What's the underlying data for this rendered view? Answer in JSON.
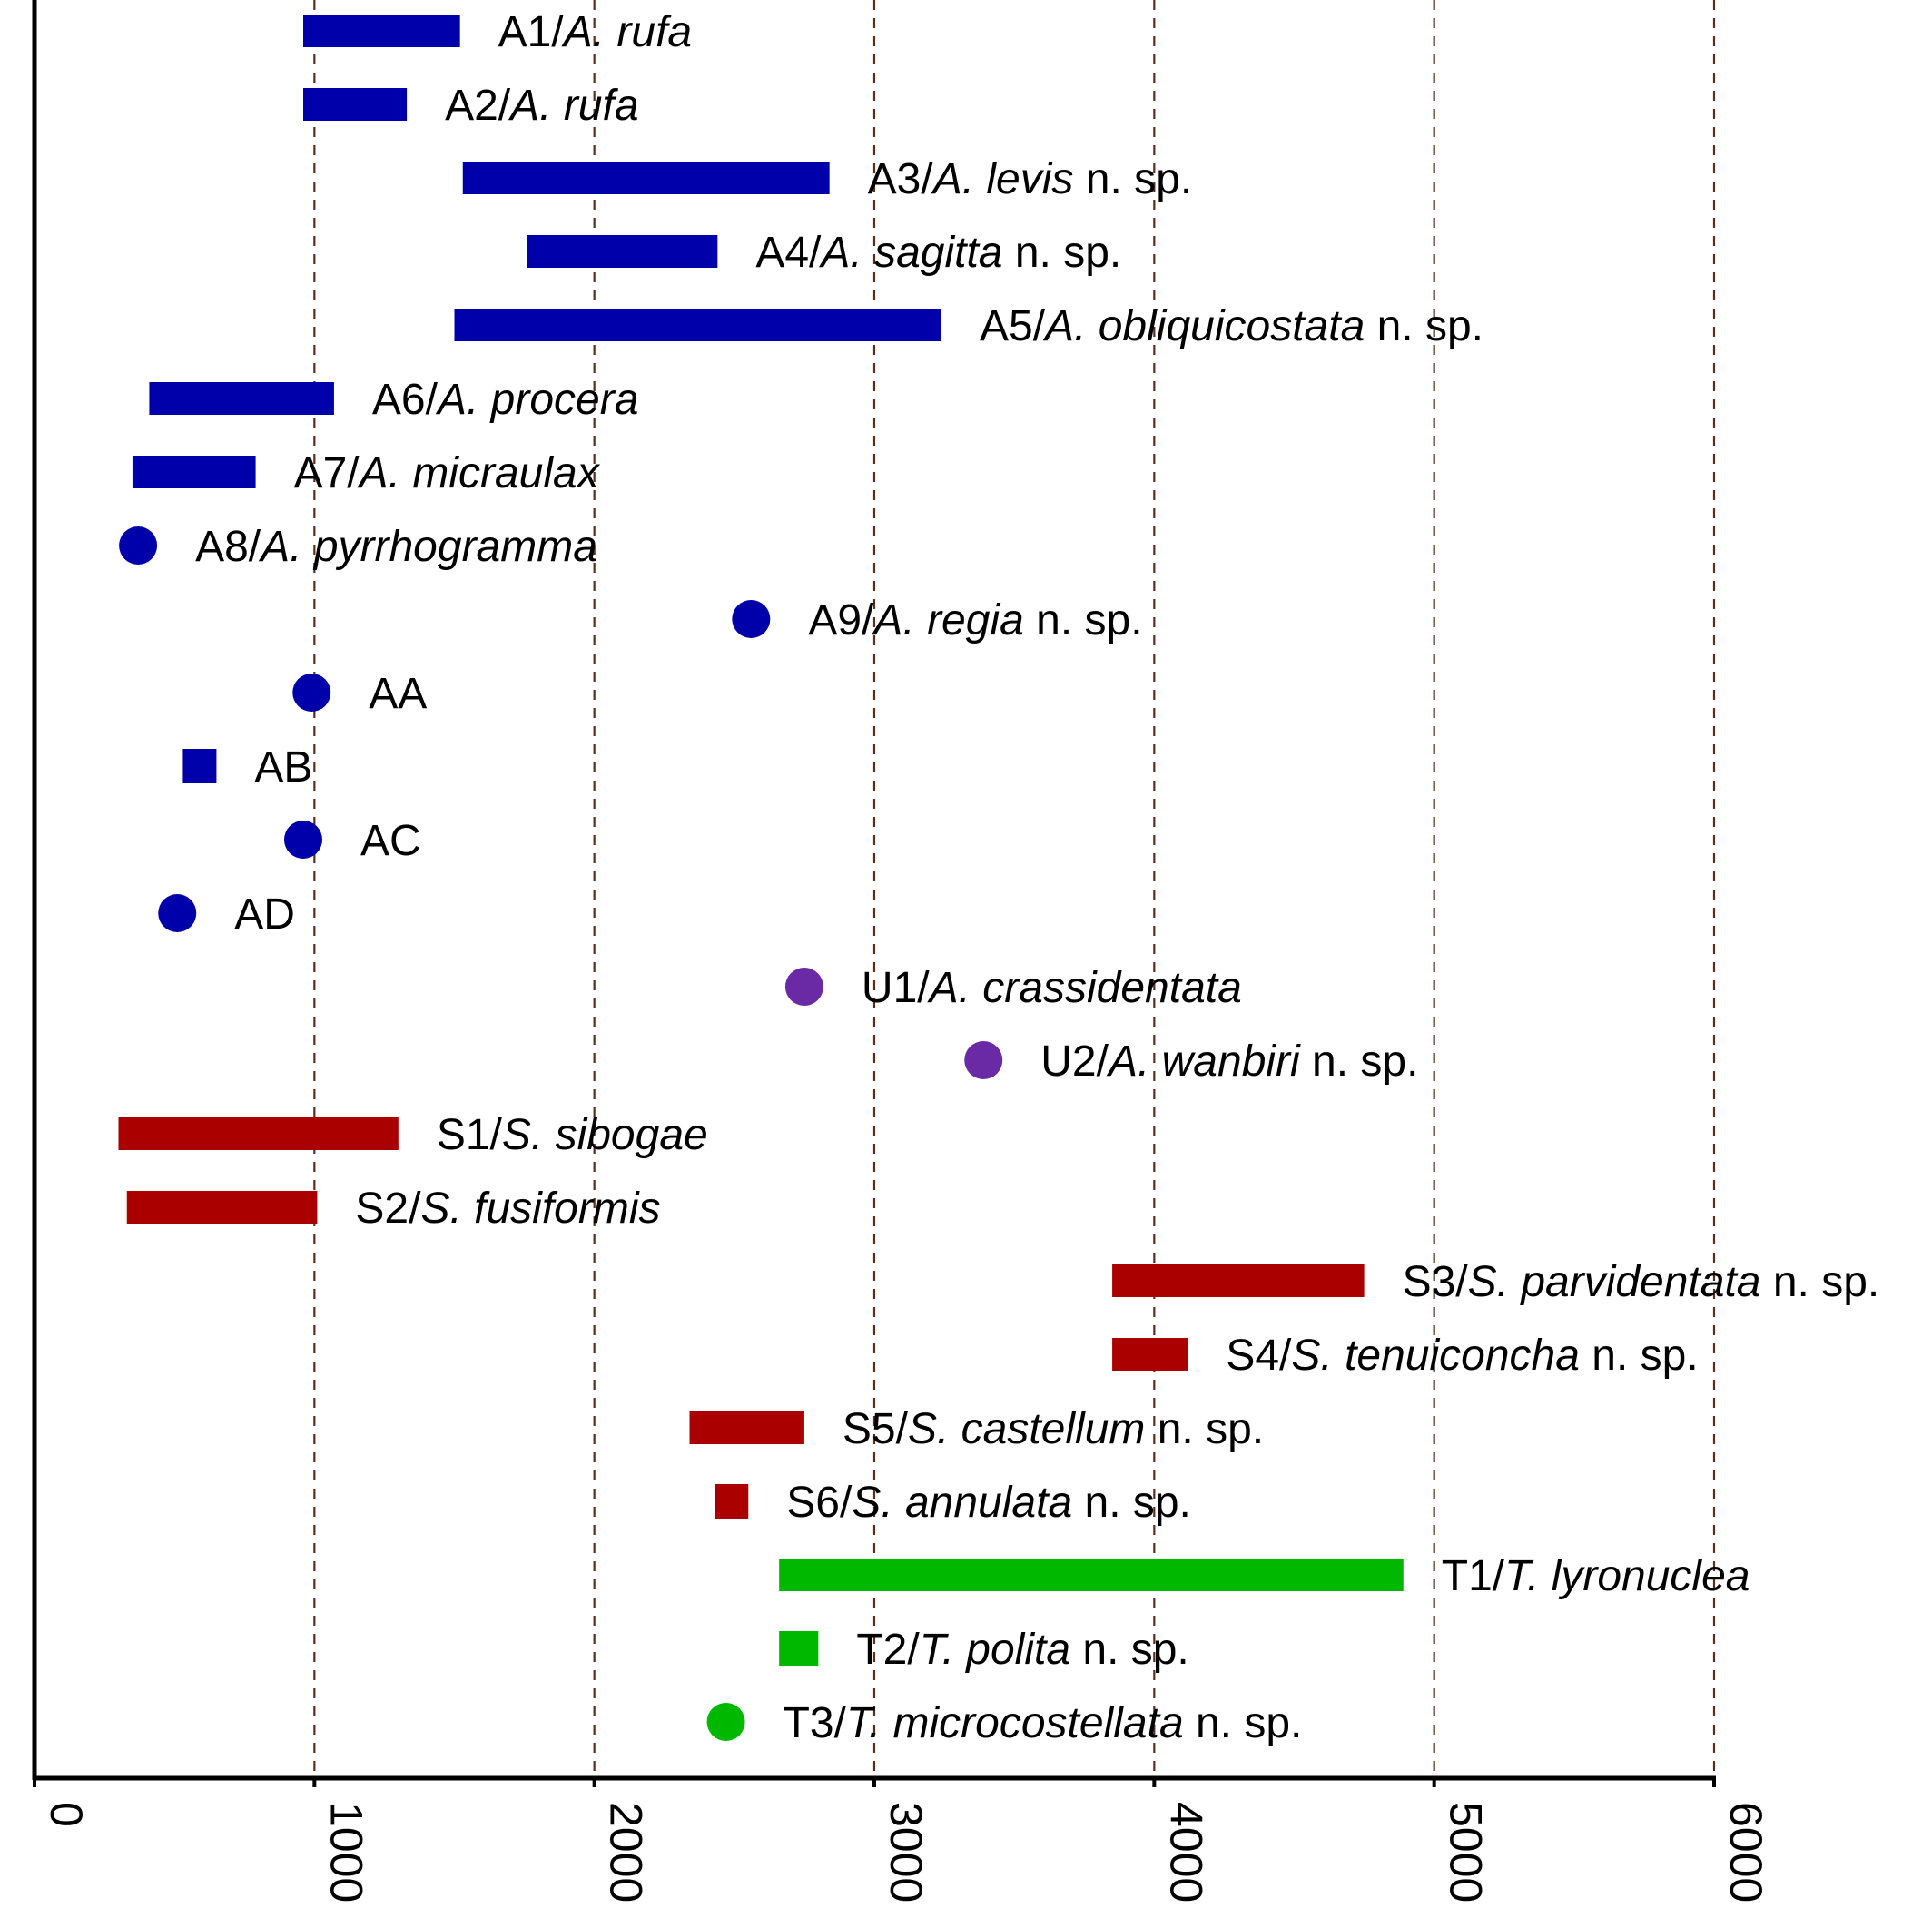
{
  "chart_data": {
    "type": "range",
    "title": "",
    "xlabel": "",
    "ylabel": "",
    "xlim": [
      0,
      6000
    ],
    "x_ticks": [
      "0",
      "1000",
      "2000",
      "3000",
      "4000",
      "5000",
      "6000"
    ],
    "grid": "vertical dashed lines at 1000-unit intervals",
    "groups": {
      "A": {
        "color": "#0000aa"
      },
      "U": {
        "color": "#6a2aa6"
      },
      "S": {
        "color": "#aa0000"
      },
      "T": {
        "color": "#00b800"
      }
    },
    "items": [
      {
        "code": "A1/",
        "taxon": "A. rufa",
        "suffix": "",
        "group": "A",
        "shape": "range",
        "min": 960,
        "max": 1520
      },
      {
        "code": "A2/",
        "taxon": "A. rufa",
        "suffix": "",
        "group": "A",
        "shape": "range",
        "min": 960,
        "max": 1330
      },
      {
        "code": "A3/",
        "taxon": "A. levis",
        "suffix": " n. sp.",
        "group": "A",
        "shape": "range",
        "min": 1530,
        "max": 2840
      },
      {
        "code": "A4/",
        "taxon": "A. sagitta",
        "suffix": " n. sp.",
        "group": "A",
        "shape": "range",
        "min": 1760,
        "max": 2440
      },
      {
        "code": "A5/",
        "taxon": "A. obliquicostata",
        "suffix": " n. sp.",
        "group": "A",
        "shape": "range",
        "min": 1500,
        "max": 3240
      },
      {
        "code": "A6/",
        "taxon": "A. procera",
        "suffix": "",
        "group": "A",
        "shape": "range",
        "min": 410,
        "max": 1070
      },
      {
        "code": "A7/",
        "taxon": "A. micraulax",
        "suffix": "",
        "group": "A",
        "shape": "range",
        "min": 350,
        "max": 790
      },
      {
        "code": "A8/",
        "taxon": "A. pyrrhogramma",
        "suffix": "",
        "group": "A",
        "shape": "point",
        "value": 370
      },
      {
        "code": "A9/",
        "taxon": "A. regia",
        "suffix": " n. sp.",
        "group": "A",
        "shape": "point",
        "value": 2560
      },
      {
        "code": "AA",
        "taxon": "",
        "suffix": "",
        "group": "A",
        "shape": "point",
        "value": 990
      },
      {
        "code": "AB",
        "taxon": "",
        "suffix": "",
        "group": "A",
        "shape": "range",
        "min": 530,
        "max": 650
      },
      {
        "code": "AC",
        "taxon": "",
        "suffix": "",
        "group": "A",
        "shape": "point",
        "value": 960
      },
      {
        "code": "AD",
        "taxon": "",
        "suffix": "",
        "group": "A",
        "shape": "point",
        "value": 510
      },
      {
        "code": "U1/",
        "taxon": "A. crassidentata",
        "suffix": "",
        "group": "U",
        "shape": "point",
        "value": 2750
      },
      {
        "code": "U2/",
        "taxon": "A. wanbiri",
        "suffix": " n. sp.",
        "group": "U",
        "shape": "point",
        "value": 3390
      },
      {
        "code": "S1/",
        "taxon": "S. sibogae",
        "suffix": "",
        "group": "S",
        "shape": "range",
        "min": 300,
        "max": 1300
      },
      {
        "code": "S2/",
        "taxon": "S. fusiformis",
        "suffix": "",
        "group": "S",
        "shape": "range",
        "min": 330,
        "max": 1010
      },
      {
        "code": "S3/",
        "taxon": "S. parvidentata",
        "suffix": " n. sp.",
        "group": "S",
        "shape": "range",
        "min": 3850,
        "max": 4750
      },
      {
        "code": "S4/",
        "taxon": "S. tenuiconcha",
        "suffix": " n. sp.",
        "group": "S",
        "shape": "range",
        "min": 3850,
        "max": 4120
      },
      {
        "code": "S5/",
        "taxon": "S. castellum",
        "suffix": " n. sp.",
        "group": "S",
        "shape": "range",
        "min": 2340,
        "max": 2750
      },
      {
        "code": "S6/",
        "taxon": "S. annulata",
        "suffix": " n. sp.",
        "group": "S",
        "shape": "range",
        "min": 2430,
        "max": 2550
      },
      {
        "code": "T1/",
        "taxon": "T. lyronuclea",
        "suffix": "",
        "group": "T",
        "shape": "range",
        "min": 2660,
        "max": 4890
      },
      {
        "code": "T2/",
        "taxon": "T. polita",
        "suffix": " n. sp.",
        "group": "T",
        "shape": "range",
        "min": 2660,
        "max": 2800
      },
      {
        "code": "T3/",
        "taxon": "T. microcostellata",
        "suffix": " n. sp.",
        "group": "T",
        "shape": "point",
        "value": 2470
      }
    ]
  }
}
